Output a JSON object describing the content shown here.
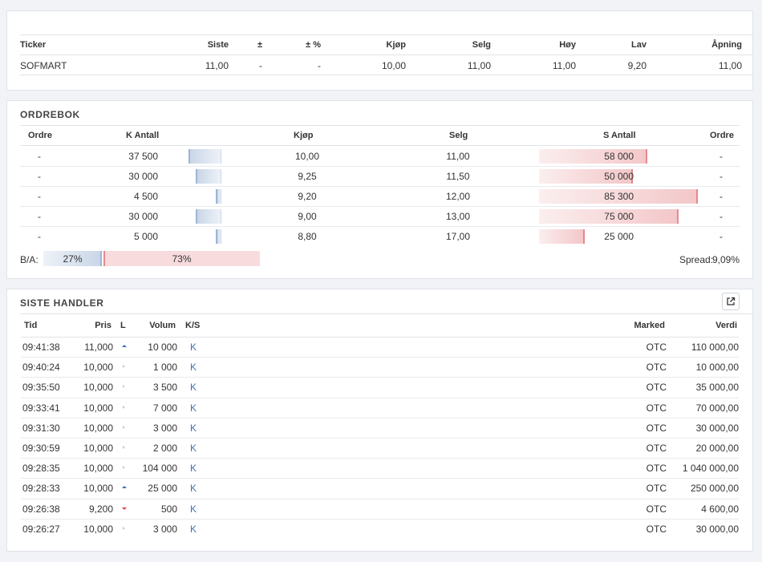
{
  "quote": {
    "headers": [
      "Ticker",
      "Siste",
      "±",
      "± %",
      "Kjøp",
      "Selg",
      "Høy",
      "Lav",
      "Åpning"
    ],
    "row": [
      "SOFMART",
      "11,00",
      "-",
      "-",
      "10,00",
      "11,00",
      "11,00",
      "9,20",
      "11,00"
    ]
  },
  "orderbook": {
    "title": "ORDREBOK",
    "headers": {
      "ordre_left": "Ordre",
      "k_antall": "K Antall",
      "kjop": "Kjøp",
      "selg": "Selg",
      "s_antall": "S Antall",
      "ordre_right": "Ordre"
    },
    "rows": [
      {
        "ordre_b": "-",
        "k_antall": "37 500",
        "k_fill": 0.44,
        "kjop": "10,00",
        "selg": "11,00",
        "s_antall": "58 000",
        "s_fill": 0.68,
        "ordre_s": "-"
      },
      {
        "ordre_b": "-",
        "k_antall": "30 000",
        "k_fill": 0.35,
        "kjop": "9,25",
        "selg": "11,50",
        "s_antall": "50 000",
        "s_fill": 0.59,
        "ordre_s": "-"
      },
      {
        "ordre_b": "-",
        "k_antall": "4 500",
        "k_fill": 0.05,
        "kjop": "9,20",
        "selg": "12,00",
        "s_antall": "85 300",
        "s_fill": 1.0,
        "ordre_s": "-"
      },
      {
        "ordre_b": "-",
        "k_antall": "30 000",
        "k_fill": 0.35,
        "kjop": "9,00",
        "selg": "13,00",
        "s_antall": "75 000",
        "s_fill": 0.88,
        "ordre_s": "-"
      },
      {
        "ordre_b": "-",
        "k_antall": "5 000",
        "k_fill": 0.06,
        "kjop": "8,80",
        "selg": "17,00",
        "s_antall": "25 000",
        "s_fill": 0.29,
        "ordre_s": "-"
      }
    ],
    "ba_label": "B/A:",
    "ba_buy_pct": "27%",
    "ba_sell_pct": "73%",
    "ba_buy_fraction": 0.27,
    "spread_label": "Spread:",
    "spread_value": "9,09%"
  },
  "trades": {
    "title": "SISTE HANDLER",
    "headers": {
      "tid": "Tid",
      "pris": "Pris",
      "l": "L",
      "volum": "Volum",
      "ks": "K/S",
      "marked": "Marked",
      "verdi": "Verdi"
    },
    "rows": [
      {
        "tid": "09:41:38",
        "pris": "11,000",
        "dir": "up",
        "volum": "10 000",
        "ks": "K",
        "marked": "OTC",
        "verdi": "110 000,00"
      },
      {
        "tid": "09:40:24",
        "pris": "10,000",
        "dir": "flat",
        "volum": "1 000",
        "ks": "K",
        "marked": "OTC",
        "verdi": "10 000,00"
      },
      {
        "tid": "09:35:50",
        "pris": "10,000",
        "dir": "flat",
        "volum": "3 500",
        "ks": "K",
        "marked": "OTC",
        "verdi": "35 000,00"
      },
      {
        "tid": "09:33:41",
        "pris": "10,000",
        "dir": "flat",
        "volum": "7 000",
        "ks": "K",
        "marked": "OTC",
        "verdi": "70 000,00"
      },
      {
        "tid": "09:31:30",
        "pris": "10,000",
        "dir": "flat",
        "volum": "3 000",
        "ks": "K",
        "marked": "OTC",
        "verdi": "30 000,00"
      },
      {
        "tid": "09:30:59",
        "pris": "10,000",
        "dir": "flat",
        "volum": "2 000",
        "ks": "K",
        "marked": "OTC",
        "verdi": "20 000,00"
      },
      {
        "tid": "09:28:35",
        "pris": "10,000",
        "dir": "flat",
        "volum": "104 000",
        "ks": "K",
        "marked": "OTC",
        "verdi": "1 040 000,00"
      },
      {
        "tid": "09:28:33",
        "pris": "10,000",
        "dir": "up",
        "volum": "25 000",
        "ks": "K",
        "marked": "OTC",
        "verdi": "250 000,00"
      },
      {
        "tid": "09:26:38",
        "pris": "9,200",
        "dir": "down",
        "volum": "500",
        "ks": "K",
        "marked": "OTC",
        "verdi": "4 600,00"
      },
      {
        "tid": "09:26:27",
        "pris": "10,000",
        "dir": "flat",
        "volum": "3 000",
        "ks": "K",
        "marked": "OTC",
        "verdi": "30 000,00"
      }
    ],
    "external_icon": "external-link-icon"
  },
  "colors": {
    "buy": "#c9d6e8",
    "sell": "#f3c7c9",
    "link": "#3d72b8",
    "down": "#d9444b"
  }
}
